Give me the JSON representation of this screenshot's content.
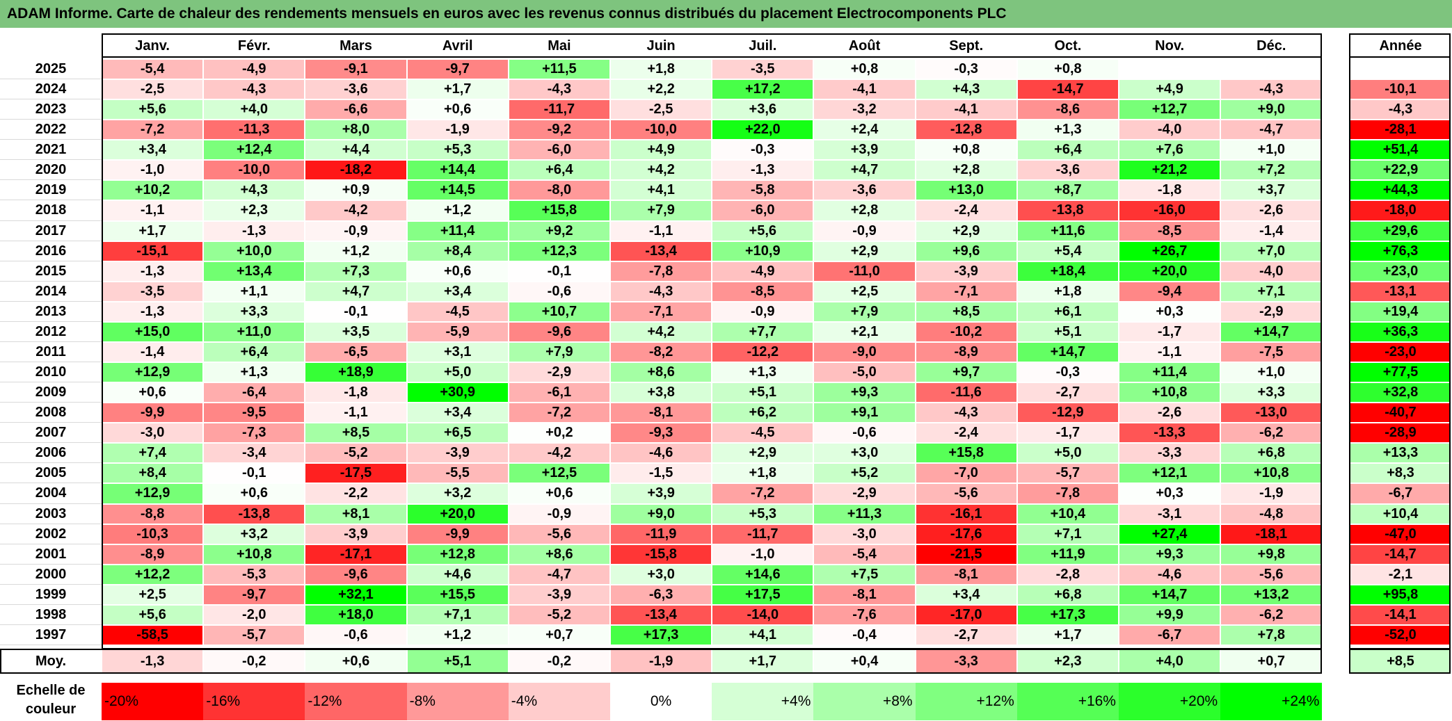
{
  "title": "ADAM Informe. Carte de chaleur des rendements mensuels en euros avec les revenus connus distribués du placement Electrocomponents PLC",
  "chart_data": {
    "type": "heatmap",
    "title": "ADAM Informe. Carte de chaleur des rendements mensuels en euros avec les revenus connus distribués du placement Electrocomponents PLC",
    "months": [
      "Janv.",
      "Févr.",
      "Mars",
      "Avril",
      "Mai",
      "Juin",
      "Juil.",
      "Août",
      "Sept.",
      "Oct.",
      "Nov.",
      "Déc."
    ],
    "year_header": "Année",
    "avg_label": "Moy.",
    "rows": [
      {
        "year": "2025",
        "values": [
          "-5,4",
          "-4,9",
          "-9,1",
          "-9,7",
          "+11,5",
          "+1,8",
          "-3,5",
          "+0,8",
          "-0,3",
          "+0,8",
          "",
          ""
        ],
        "annual": ""
      },
      {
        "year": "2024",
        "values": [
          "-2,5",
          "-4,3",
          "-3,6",
          "+1,7",
          "-4,3",
          "+2,2",
          "+17,2",
          "-4,1",
          "+4,3",
          "-14,7",
          "+4,9",
          "-4,3"
        ],
        "annual": "-10,1"
      },
      {
        "year": "2023",
        "values": [
          "+5,6",
          "+4,0",
          "-6,6",
          "+0,6",
          "-11,7",
          "-2,5",
          "+3,6",
          "-3,2",
          "-4,1",
          "-8,6",
          "+12,7",
          "+9,0"
        ],
        "annual": "-4,3"
      },
      {
        "year": "2022",
        "values": [
          "-7,2",
          "-11,3",
          "+8,0",
          "-1,9",
          "-9,2",
          "-10,0",
          "+22,0",
          "+2,4",
          "-12,8",
          "+1,3",
          "-4,0",
          "-4,7"
        ],
        "annual": "-28,1"
      },
      {
        "year": "2021",
        "values": [
          "+3,4",
          "+12,4",
          "+4,4",
          "+5,3",
          "-6,0",
          "+4,9",
          "-0,3",
          "+3,9",
          "+0,8",
          "+6,4",
          "+7,6",
          "+1,0"
        ],
        "annual": "+51,4"
      },
      {
        "year": "2020",
        "values": [
          "-1,0",
          "-10,0",
          "-18,2",
          "+14,4",
          "+6,4",
          "+4,2",
          "-1,3",
          "+4,7",
          "+2,8",
          "-3,6",
          "+21,2",
          "+7,2"
        ],
        "annual": "+22,9"
      },
      {
        "year": "2019",
        "values": [
          "+10,2",
          "+4,3",
          "+0,9",
          "+14,5",
          "-8,0",
          "+4,1",
          "-5,8",
          "-3,6",
          "+13,0",
          "+8,7",
          "-1,8",
          "+3,7"
        ],
        "annual": "+44,3"
      },
      {
        "year": "2018",
        "values": [
          "-1,1",
          "+2,3",
          "-4,2",
          "+1,2",
          "+15,8",
          "+7,9",
          "-6,0",
          "+2,8",
          "-2,4",
          "-13,8",
          "-16,0",
          "-2,6"
        ],
        "annual": "-18,0"
      },
      {
        "year": "2017",
        "values": [
          "+1,7",
          "-1,3",
          "-0,9",
          "+11,4",
          "+9,2",
          "-1,1",
          "+5,6",
          "-0,9",
          "+2,9",
          "+11,6",
          "-8,5",
          "-1,4"
        ],
        "annual": "+29,6"
      },
      {
        "year": "2016",
        "values": [
          "-15,1",
          "+10,0",
          "+1,2",
          "+8,4",
          "+12,3",
          "-13,4",
          "+10,9",
          "+2,9",
          "+9,6",
          "+5,4",
          "+26,7",
          "+7,0"
        ],
        "annual": "+76,3"
      },
      {
        "year": "2015",
        "values": [
          "-1,3",
          "+13,4",
          "+7,3",
          "+0,6",
          "-0,1",
          "-7,8",
          "-4,9",
          "-11,0",
          "-3,9",
          "+18,4",
          "+20,0",
          "-4,0"
        ],
        "annual": "+23,0"
      },
      {
        "year": "2014",
        "values": [
          "-3,5",
          "+1,1",
          "+4,7",
          "+3,4",
          "-0,6",
          "-4,3",
          "-8,5",
          "+2,5",
          "-7,1",
          "+1,8",
          "-9,4",
          "+7,1"
        ],
        "annual": "-13,1"
      },
      {
        "year": "2013",
        "values": [
          "-1,3",
          "+3,3",
          "-0,1",
          "-4,5",
          "+10,7",
          "-7,1",
          "-0,9",
          "+7,9",
          "+8,5",
          "+6,1",
          "+0,3",
          "-2,9"
        ],
        "annual": "+19,4"
      },
      {
        "year": "2012",
        "values": [
          "+15,0",
          "+11,0",
          "+3,5",
          "-5,9",
          "-9,6",
          "+4,2",
          "+7,7",
          "+2,1",
          "-10,2",
          "+5,1",
          "-1,7",
          "+14,7"
        ],
        "annual": "+36,3"
      },
      {
        "year": "2011",
        "values": [
          "-1,4",
          "+6,4",
          "-6,5",
          "+3,1",
          "+7,9",
          "-8,2",
          "-12,2",
          "-9,0",
          "-8,9",
          "+14,7",
          "-1,1",
          "-7,5"
        ],
        "annual": "-23,0"
      },
      {
        "year": "2010",
        "values": [
          "+12,9",
          "+1,3",
          "+18,9",
          "+5,0",
          "-2,9",
          "+8,6",
          "+1,3",
          "-5,0",
          "+9,7",
          "-0,3",
          "+11,4",
          "+1,0"
        ],
        "annual": "+77,5"
      },
      {
        "year": "2009",
        "values": [
          "+0,6",
          "-6,4",
          "-1,8",
          "+30,9",
          "-6,1",
          "+3,8",
          "+5,1",
          "+9,3",
          "-11,6",
          "-2,7",
          "+10,8",
          "+3,3"
        ],
        "annual": "+32,8"
      },
      {
        "year": "2008",
        "values": [
          "-9,9",
          "-9,5",
          "-1,1",
          "+3,4",
          "-7,2",
          "-8,1",
          "+6,2",
          "+9,1",
          "-4,3",
          "-12,9",
          "-2,6",
          "-13,0"
        ],
        "annual": "-40,7"
      },
      {
        "year": "2007",
        "values": [
          "-3,0",
          "-7,3",
          "+8,5",
          "+6,5",
          "+0,2",
          "-9,3",
          "-4,5",
          "-0,6",
          "-2,4",
          "-1,7",
          "-13,3",
          "-6,2"
        ],
        "annual": "-28,9"
      },
      {
        "year": "2006",
        "values": [
          "+7,4",
          "-3,4",
          "-5,2",
          "-3,9",
          "-4,2",
          "-4,6",
          "+2,9",
          "+3,0",
          "+15,8",
          "+5,0",
          "-3,3",
          "+6,8"
        ],
        "annual": "+13,3"
      },
      {
        "year": "2005",
        "values": [
          "+8,4",
          "-0,1",
          "-17,5",
          "-5,5",
          "+12,5",
          "-1,5",
          "+1,8",
          "+5,2",
          "-7,0",
          "-5,7",
          "+12,1",
          "+10,8"
        ],
        "annual": "+8,3"
      },
      {
        "year": "2004",
        "values": [
          "+12,9",
          "+0,6",
          "-2,2",
          "+3,2",
          "+0,6",
          "+3,9",
          "-7,2",
          "-2,9",
          "-5,6",
          "-7,8",
          "+0,3",
          "-1,9"
        ],
        "annual": "-6,7"
      },
      {
        "year": "2003",
        "values": [
          "-8,8",
          "-13,8",
          "+8,1",
          "+20,0",
          "-0,9",
          "+9,0",
          "+5,3",
          "+11,3",
          "-16,1",
          "+10,4",
          "-3,1",
          "-4,8"
        ],
        "annual": "+10,4"
      },
      {
        "year": "2002",
        "values": [
          "-10,3",
          "+3,2",
          "-3,9",
          "-9,9",
          "-5,6",
          "-11,9",
          "-11,7",
          "-3,0",
          "-17,6",
          "+7,1",
          "+27,4",
          "-18,1"
        ],
        "annual": "-47,0"
      },
      {
        "year": "2001",
        "values": [
          "-8,9",
          "+10,8",
          "-17,1",
          "+12,8",
          "+8,6",
          "-15,8",
          "-1,0",
          "-5,4",
          "-21,5",
          "+11,9",
          "+9,3",
          "+9,8"
        ],
        "annual": "-14,7"
      },
      {
        "year": "2000",
        "values": [
          "+12,2",
          "-5,3",
          "-9,6",
          "+4,6",
          "-4,7",
          "+3,0",
          "+14,6",
          "+7,5",
          "-8,1",
          "-2,8",
          "-4,6",
          "-5,6"
        ],
        "annual": "-2,1"
      },
      {
        "year": "1999",
        "values": [
          "+2,5",
          "-9,7",
          "+32,1",
          "+15,5",
          "-3,9",
          "-6,3",
          "+17,5",
          "-8,1",
          "+3,4",
          "+6,8",
          "+14,7",
          "+13,2"
        ],
        "annual": "+95,8"
      },
      {
        "year": "1998",
        "values": [
          "+5,6",
          "-2,0",
          "+18,0",
          "+7,1",
          "-5,2",
          "-13,4",
          "-14,0",
          "-7,6",
          "-17,0",
          "+17,3",
          "+9,9",
          "-6,2"
        ],
        "annual": "-14,1"
      },
      {
        "year": "1997",
        "values": [
          "-58,5",
          "-5,7",
          "-0,6",
          "+1,2",
          "+0,7",
          "+17,3",
          "+4,1",
          "-0,4",
          "-2,7",
          "+1,7",
          "-6,7",
          "+7,8"
        ],
        "annual": "-52,0"
      }
    ],
    "averages": {
      "values": [
        "-1,3",
        "-0,2",
        "+0,6",
        "+5,1",
        "-0,2",
        "-1,9",
        "+1,7",
        "+0,4",
        "-3,3",
        "+2,3",
        "+4,0",
        "+0,7"
      ],
      "annual": "+8,5"
    },
    "scale": {
      "label_line1": "Echelle de",
      "label_line2": "couleur",
      "items": [
        "-20%",
        "-16%",
        "-12%",
        "-8%",
        "-4%",
        "0%",
        "+4%",
        "+8%",
        "+12%",
        "+16%",
        "+20%",
        "+24%"
      ]
    }
  }
}
